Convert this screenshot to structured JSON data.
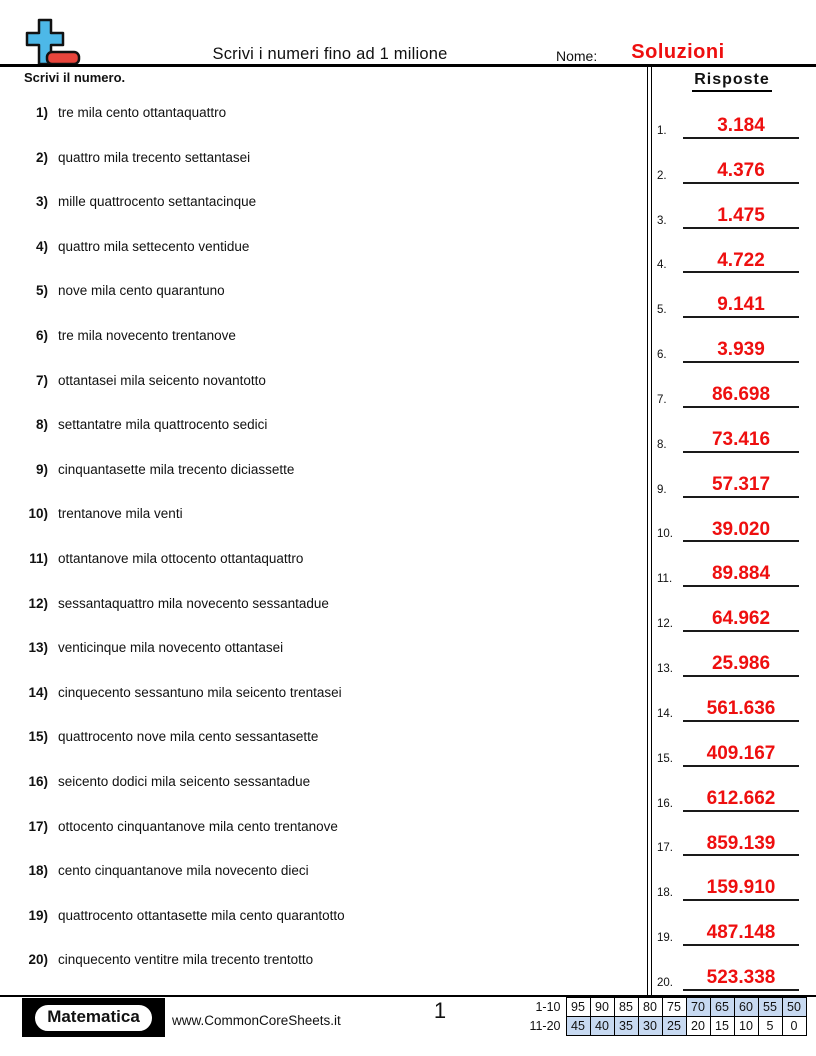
{
  "colors": {
    "answer_red": "#ee0f0f",
    "logo_blue": "#4db8e8",
    "logo_red": "#e8453c",
    "highlight_blue": "#c7d9f1"
  },
  "header": {
    "title": "Scrivi i numeri fino ad 1 milione",
    "name_label": "Nome:",
    "name_value": "Soluzioni",
    "instruction": "Scrivi il numero.",
    "answers_title": "Risposte"
  },
  "questions": [
    {
      "num": "1)",
      "text": "tre mila cento ottantaquattro"
    },
    {
      "num": "2)",
      "text": "quattro mila trecento settantasei"
    },
    {
      "num": "3)",
      "text": "mille quattrocento settantacinque"
    },
    {
      "num": "4)",
      "text": "quattro mila settecento ventidue"
    },
    {
      "num": "5)",
      "text": "nove mila cento quarantuno"
    },
    {
      "num": "6)",
      "text": "tre mila novecento trentanove"
    },
    {
      "num": "7)",
      "text": "ottantasei mila seicento novantotto"
    },
    {
      "num": "8)",
      "text": "settantatre mila quattrocento sedici"
    },
    {
      "num": "9)",
      "text": "cinquantasette mila trecento diciassette"
    },
    {
      "num": "10)",
      "text": "trentanove mila venti"
    },
    {
      "num": "11)",
      "text": "ottantanove mila ottocento ottantaquattro"
    },
    {
      "num": "12)",
      "text": "sessantaquattro mila novecento sessantadue"
    },
    {
      "num": "13)",
      "text": "venticinque mila novecento ottantasei"
    },
    {
      "num": "14)",
      "text": "cinquecento sessantuno mila seicento trentasei"
    },
    {
      "num": "15)",
      "text": "quattrocento nove mila cento sessantasette"
    },
    {
      "num": "16)",
      "text": "seicento dodici mila seicento sessantadue"
    },
    {
      "num": "17)",
      "text": "ottocento cinquantanove mila cento trentanove"
    },
    {
      "num": "18)",
      "text": "cento cinquantanove mila novecento dieci"
    },
    {
      "num": "19)",
      "text": "quattrocento ottantasette mila cento quarantotto"
    },
    {
      "num": "20)",
      "text": "cinquecento ventitre mila trecento trentotto"
    }
  ],
  "answers": [
    {
      "num": "1.",
      "value": "3.184"
    },
    {
      "num": "2.",
      "value": "4.376"
    },
    {
      "num": "3.",
      "value": "1.475"
    },
    {
      "num": "4.",
      "value": "4.722"
    },
    {
      "num": "5.",
      "value": "9.141"
    },
    {
      "num": "6.",
      "value": "3.939"
    },
    {
      "num": "7.",
      "value": "86.698"
    },
    {
      "num": "8.",
      "value": "73.416"
    },
    {
      "num": "9.",
      "value": "57.317"
    },
    {
      "num": "10.",
      "value": "39.020"
    },
    {
      "num": "11.",
      "value": "89.884"
    },
    {
      "num": "12.",
      "value": "64.962"
    },
    {
      "num": "13.",
      "value": "25.986"
    },
    {
      "num": "14.",
      "value": "561.636"
    },
    {
      "num": "15.",
      "value": "409.167"
    },
    {
      "num": "16.",
      "value": "612.662"
    },
    {
      "num": "17.",
      "value": "859.139"
    },
    {
      "num": "18.",
      "value": "159.910"
    },
    {
      "num": "19.",
      "value": "487.148"
    },
    {
      "num": "20.",
      "value": "523.338"
    }
  ],
  "footer": {
    "badge_label": "Matematica",
    "website": "www.CommonCoreSheets.it",
    "page_number": "1",
    "score_table": {
      "rows": [
        {
          "label": "1-10",
          "cells": [
            {
              "value": "95",
              "highlighted": false
            },
            {
              "value": "90",
              "highlighted": false
            },
            {
              "value": "85",
              "highlighted": false
            },
            {
              "value": "80",
              "highlighted": false
            },
            {
              "value": "75",
              "highlighted": false
            },
            {
              "value": "70",
              "highlighted": true
            },
            {
              "value": "65",
              "highlighted": true
            },
            {
              "value": "60",
              "highlighted": true
            },
            {
              "value": "55",
              "highlighted": true
            },
            {
              "value": "50",
              "highlighted": true
            }
          ]
        },
        {
          "label": "11-20",
          "cells": [
            {
              "value": "45",
              "highlighted": true
            },
            {
              "value": "40",
              "highlighted": true
            },
            {
              "value": "35",
              "highlighted": true
            },
            {
              "value": "30",
              "highlighted": true
            },
            {
              "value": "25",
              "highlighted": true
            },
            {
              "value": "20",
              "highlighted": false
            },
            {
              "value": "15",
              "highlighted": false
            },
            {
              "value": "10",
              "highlighted": false
            },
            {
              "value": "5",
              "highlighted": false
            },
            {
              "value": "0",
              "highlighted": false
            }
          ]
        }
      ]
    }
  }
}
